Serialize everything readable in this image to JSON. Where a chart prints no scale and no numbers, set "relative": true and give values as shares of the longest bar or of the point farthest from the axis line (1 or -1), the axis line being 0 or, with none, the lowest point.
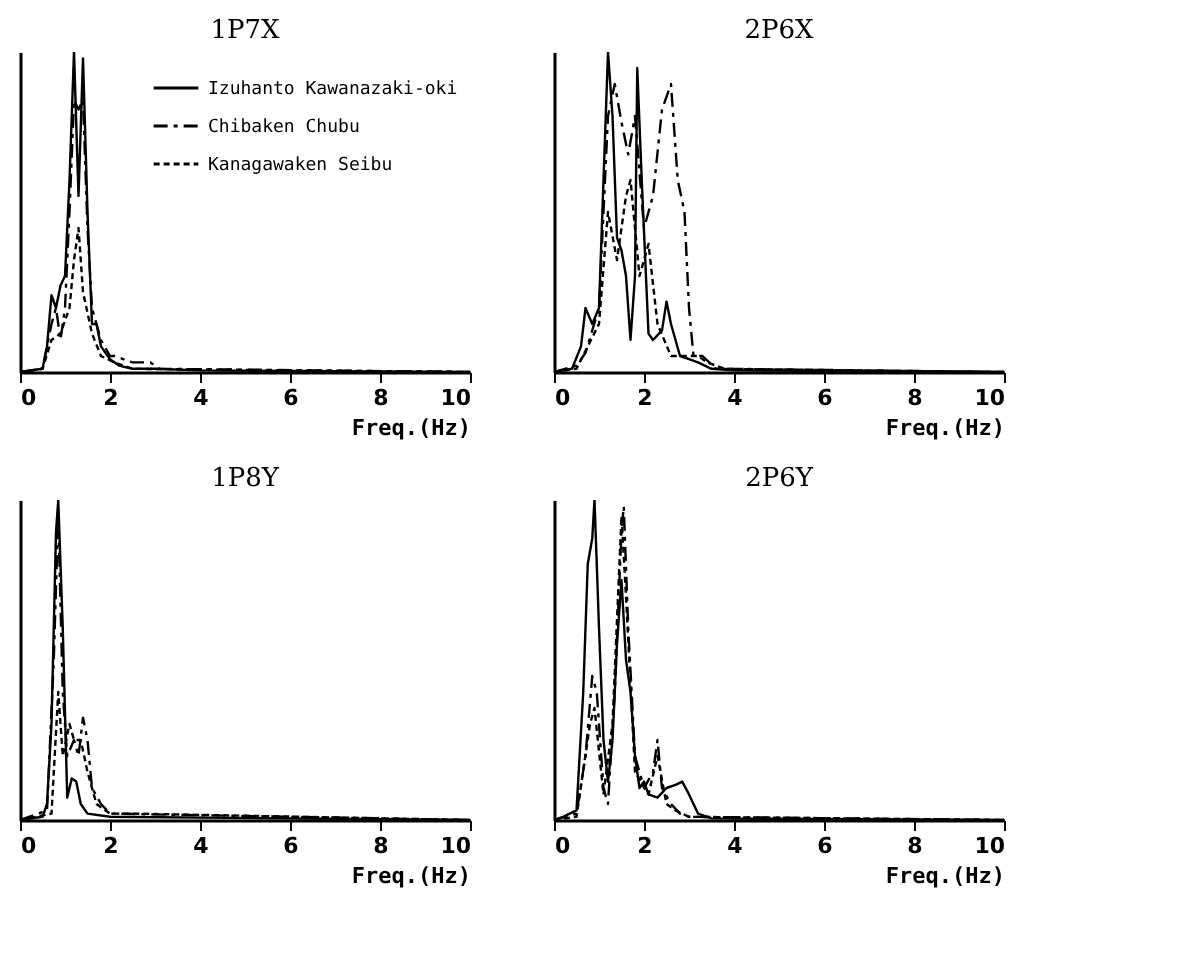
{
  "chart_data": [
    {
      "type": "line",
      "title": "1P7X",
      "xlabel": "Freq.(Hz)",
      "relative": true,
      "xlim": [
        0,
        10
      ],
      "xticks": [
        0,
        2,
        4,
        6,
        8,
        10
      ],
      "tick_labels": "x",
      "legend": "top right",
      "marker": "none",
      "series": [
        {
          "name": "Izuhanto Kawanazaki-oki",
          "color": "#000000",
          "line_style": "solid",
          "x": [
            0,
            0.5,
            0.6,
            0.7,
            0.8,
            0.9,
            1.0,
            1.1,
            1.2,
            1.3,
            1.4,
            1.5,
            1.6,
            1.7,
            1.8,
            2.0,
            2.2,
            2.5,
            3,
            4,
            10
          ],
          "values": [
            0,
            0.01,
            0.08,
            0.24,
            0.2,
            0.27,
            0.3,
            0.6,
            1.0,
            0.55,
            0.98,
            0.5,
            0.15,
            0.15,
            0.08,
            0.04,
            0.02,
            0.01,
            0.01,
            0.005,
            0
          ]
        },
        {
          "name": "Chibaken Chubu",
          "color": "#000000",
          "line_style": "dashed",
          "x": [
            0,
            0.5,
            0.7,
            0.8,
            0.9,
            1.0,
            1.1,
            1.2,
            1.3,
            1.4,
            1.5,
            1.6,
            1.7,
            1.8,
            2.0,
            2.1,
            2.5,
            2.9,
            3.1,
            10
          ],
          "values": [
            0,
            0.01,
            0.15,
            0.2,
            0.1,
            0.2,
            0.5,
            0.85,
            0.82,
            0.85,
            0.45,
            0.2,
            0.15,
            0.1,
            0.05,
            0.05,
            0.03,
            0.03,
            0.01,
            0
          ]
        },
        {
          "name": "Kanagawaken Seibu",
          "color": "#000000",
          "line_style": "dotted",
          "x": [
            0,
            0.5,
            0.7,
            0.9,
            1.1,
            1.2,
            1.3,
            1.4,
            1.6,
            1.8,
            2.1,
            2.5,
            10
          ],
          "values": [
            0,
            0.01,
            0.1,
            0.12,
            0.2,
            0.35,
            0.45,
            0.25,
            0.12,
            0.05,
            0.03,
            0.01,
            0
          ]
        }
      ]
    },
    {
      "type": "line",
      "title": "2P6X",
      "xlabel": "Freq.(Hz)",
      "relative": true,
      "xlim": [
        0,
        10
      ],
      "xticks": [
        0,
        2,
        4,
        6,
        8,
        10
      ],
      "tick_labels": "x",
      "marker": "none",
      "series": [
        {
          "color": "#000000",
          "line_style": "solid",
          "x": [
            0,
            0.4,
            0.6,
            0.7,
            0.85,
            1.0,
            1.1,
            1.2,
            1.3,
            1.4,
            1.5,
            1.6,
            1.7,
            1.8,
            1.85,
            1.95,
            2.1,
            2.2,
            2.4,
            2.5,
            2.6,
            2.8,
            3.0,
            3.2,
            3.5,
            4,
            10
          ],
          "values": [
            0,
            0.01,
            0.08,
            0.2,
            0.15,
            0.2,
            0.6,
            1.0,
            0.8,
            0.42,
            0.38,
            0.3,
            0.1,
            0.3,
            0.95,
            0.6,
            0.12,
            0.1,
            0.13,
            0.22,
            0.15,
            0.05,
            0.04,
            0.03,
            0.01,
            0.005,
            0
          ]
        },
        {
          "color": "#000000",
          "line_style": "dashed",
          "x": [
            0,
            0.5,
            0.7,
            1.0,
            1.2,
            1.35,
            1.5,
            1.65,
            1.8,
            2.0,
            2.2,
            2.4,
            2.6,
            2.75,
            2.9,
            3.0,
            3.1,
            3.3,
            3.6,
            10
          ],
          "values": [
            0,
            0.02,
            0.06,
            0.2,
            0.8,
            0.9,
            0.78,
            0.68,
            0.8,
            0.45,
            0.55,
            0.82,
            0.9,
            0.6,
            0.5,
            0.2,
            0.05,
            0.05,
            0.01,
            0
          ]
        },
        {
          "color": "#000000",
          "line_style": "dotted",
          "x": [
            0,
            0.5,
            1.0,
            1.2,
            1.4,
            1.6,
            1.7,
            1.9,
            2.1,
            2.3,
            2.6,
            3.2,
            3.4,
            3.8,
            10
          ],
          "values": [
            0,
            0.01,
            0.15,
            0.5,
            0.35,
            0.55,
            0.6,
            0.3,
            0.4,
            0.15,
            0.05,
            0.05,
            0.03,
            0.01,
            0
          ]
        }
      ]
    },
    {
      "type": "line",
      "title": "1P8Y",
      "xlabel": "Freq.(Hz)",
      "relative": true,
      "xlim": [
        0,
        10
      ],
      "xticks": [
        0,
        2,
        4,
        6,
        8,
        10
      ],
      "tick_labels": "x",
      "marker": "none",
      "series": [
        {
          "color": "#000000",
          "line_style": "solid",
          "x": [
            0,
            0.5,
            0.6,
            0.7,
            0.8,
            0.85,
            0.95,
            1.05,
            1.15,
            1.25,
            1.35,
            1.5,
            2,
            10
          ],
          "values": [
            0,
            0.01,
            0.05,
            0.3,
            0.9,
            1.0,
            0.6,
            0.07,
            0.13,
            0.12,
            0.05,
            0.02,
            0.01,
            0
          ]
        },
        {
          "color": "#000000",
          "line_style": "dashed",
          "x": [
            0,
            0.6,
            0.75,
            0.85,
            0.95,
            1.05,
            1.2,
            1.3,
            1.4,
            1.5,
            1.6,
            1.8,
            2.0,
            10
          ],
          "values": [
            0,
            0.03,
            0.5,
            0.95,
            0.4,
            0.2,
            0.25,
            0.2,
            0.32,
            0.25,
            0.1,
            0.05,
            0.02,
            0
          ]
        },
        {
          "color": "#000000",
          "line_style": "dotted",
          "x": [
            0,
            0.7,
            0.85,
            0.95,
            1.1,
            1.2,
            1.35,
            1.5,
            1.7,
            2.0,
            2.5,
            10
          ],
          "values": [
            0,
            0.02,
            0.4,
            0.2,
            0.3,
            0.25,
            0.25,
            0.15,
            0.05,
            0.02,
            0.02,
            0
          ]
        }
      ]
    },
    {
      "type": "line",
      "title": "2P6Y",
      "xlabel": "Freq.(Hz)",
      "relative": true,
      "xlim": [
        0,
        10
      ],
      "xticks": [
        0,
        2,
        4,
        6,
        8,
        10
      ],
      "tick_labels": "x",
      "marker": "none",
      "series": [
        {
          "color": "#000000",
          "line_style": "solid",
          "x": [
            0,
            0.2,
            0.5,
            0.65,
            0.75,
            0.85,
            0.9,
            1.0,
            1.1,
            1.2,
            1.3,
            1.4,
            1.5,
            1.6,
            1.7,
            1.8,
            1.9,
            2.0,
            2.1,
            2.3,
            2.5,
            2.7,
            2.85,
            3.0,
            3.2,
            3.5,
            10
          ],
          "values": [
            0,
            0.01,
            0.03,
            0.4,
            0.8,
            0.88,
            1.0,
            0.6,
            0.25,
            0.12,
            0.25,
            0.55,
            0.75,
            0.5,
            0.4,
            0.2,
            0.1,
            0.12,
            0.08,
            0.07,
            0.1,
            0.11,
            0.12,
            0.08,
            0.02,
            0.005,
            0
          ]
        },
        {
          "color": "#000000",
          "line_style": "dashed",
          "x": [
            0,
            0.5,
            0.7,
            0.85,
            0.95,
            1.1,
            1.2,
            1.35,
            1.5,
            1.55,
            1.65,
            1.8,
            2.0,
            2.2,
            2.3,
            2.4,
            2.6,
            2.8,
            3.0,
            10
          ],
          "values": [
            0,
            0.02,
            0.2,
            0.45,
            0.4,
            0.1,
            0.05,
            0.4,
            0.9,
            0.98,
            0.6,
            0.2,
            0.1,
            0.15,
            0.25,
            0.1,
            0.05,
            0.02,
            0.01,
            0
          ]
        },
        {
          "color": "#000000",
          "line_style": "dotted",
          "x": [
            0,
            0.5,
            0.8,
            0.9,
            1.1,
            1.3,
            1.5,
            1.6,
            1.8,
            2.1,
            2.3,
            2.5,
            2.7,
            3.0,
            10
          ],
          "values": [
            0,
            0.01,
            0.3,
            0.35,
            0.08,
            0.3,
            0.95,
            0.7,
            0.15,
            0.08,
            0.2,
            0.05,
            0.03,
            0.01,
            0
          ]
        }
      ]
    }
  ]
}
